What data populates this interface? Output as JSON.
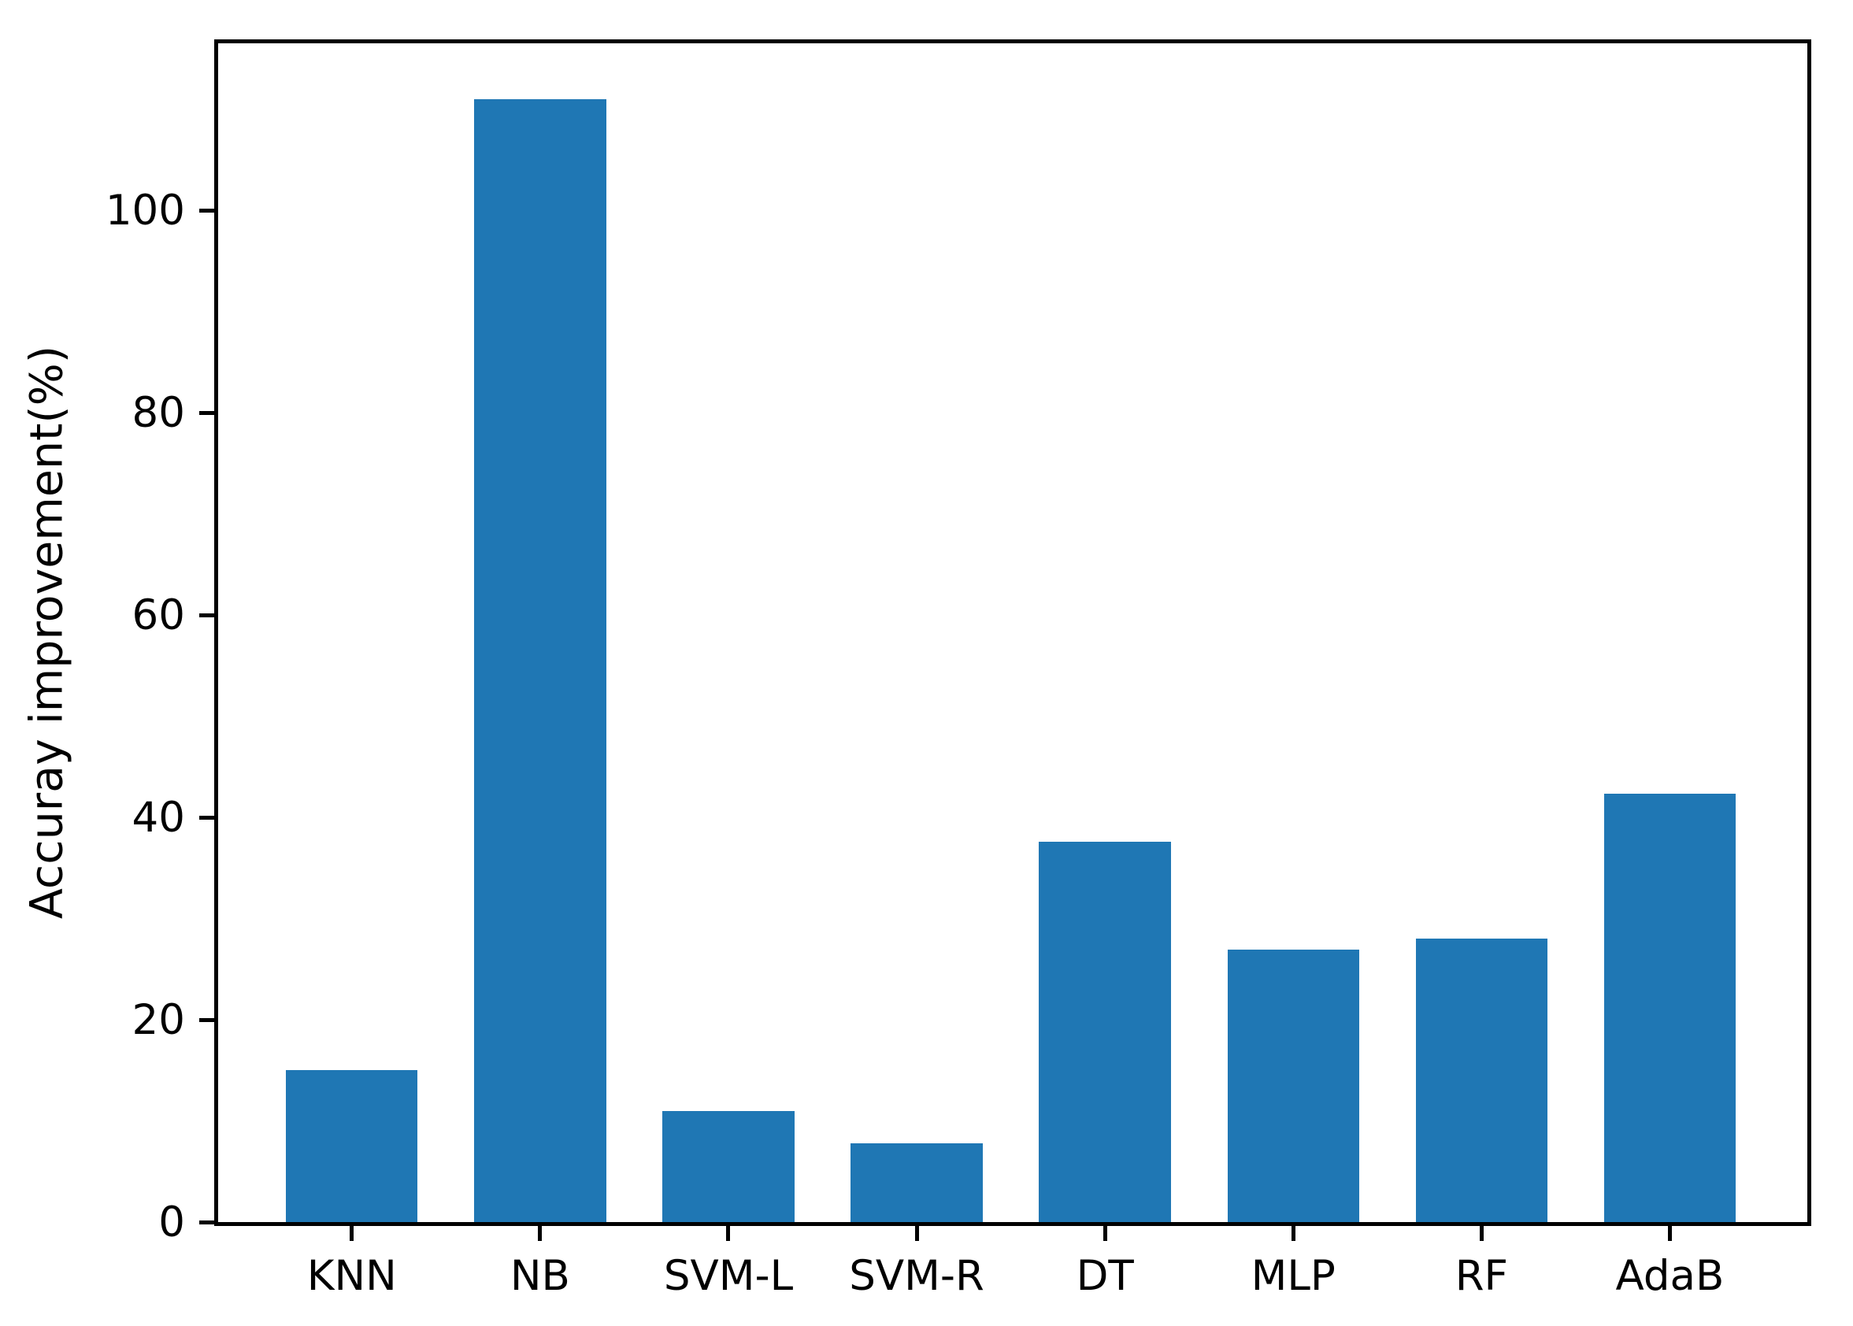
{
  "chart_data": {
    "type": "bar",
    "title": "",
    "xlabel": "",
    "ylabel": "Accuray improvement(%)",
    "categories": [
      "KNN",
      "NB",
      "SVM-L",
      "SVM-R",
      "DT",
      "MLP",
      "RF",
      "AdaB"
    ],
    "values": [
      15,
      111,
      11,
      7.8,
      37.6,
      26.9,
      28,
      42.3
    ],
    "yticks": [
      0,
      20,
      40,
      60,
      80,
      100
    ],
    "ylim": [
      0,
      116.5
    ],
    "xlim": [
      -0.71,
      7.73
    ],
    "bar_width_units": 0.7,
    "bar_color": "#1f77b4",
    "axis_color": "#000000",
    "background_color": "#ffffff",
    "grid": false,
    "legend": null
  }
}
